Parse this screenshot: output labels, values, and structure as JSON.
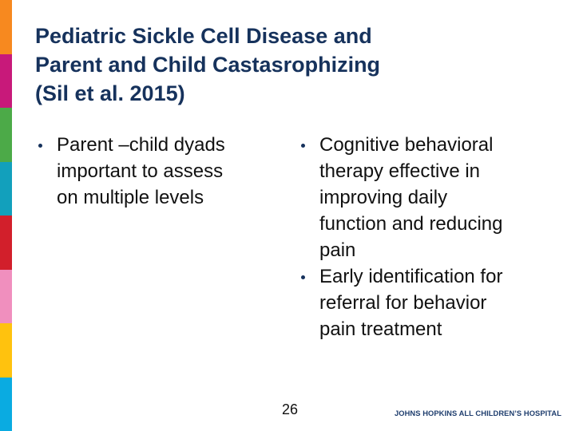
{
  "decoration": {
    "color_bar": [
      "#F7891F",
      "#C8197A",
      "#4CAA48",
      "#12A0BC",
      "#D21F2B",
      "#F08FBE",
      "#FFC20E",
      "#0AABE1"
    ]
  },
  "title": {
    "lines": [
      "Pediatric Sickle Cell Disease and",
      "Parent and Child Castasrophizing",
      "(Sil et al. 2015)"
    ],
    "color": "#16325c"
  },
  "left_column": {
    "bullets": [
      {
        "lines": [
          "Parent –child dyads",
          "important to assess",
          "on multiple levels"
        ]
      }
    ]
  },
  "right_column": {
    "bullets": [
      {
        "lines": [
          "Cognitive behavioral",
          "therapy effective in",
          "improving daily",
          "function and reducing",
          "pain"
        ]
      },
      {
        "lines": [
          "Early identification for",
          "referral for behavior",
          "pain treatment"
        ]
      }
    ]
  },
  "footer": {
    "page_number": "26",
    "logo_text": "JOHNS HOPKINS ALL CHILDREN’S HOSPITAL"
  }
}
